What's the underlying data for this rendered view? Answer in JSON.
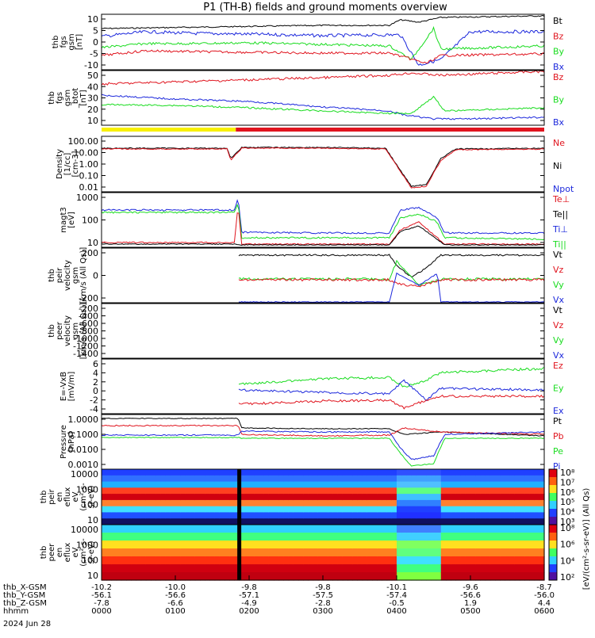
{
  "title": "P1 (TH-B) fields and ground moments overview",
  "colors": {
    "black": "#000000",
    "red": "#e0141e",
    "green": "#18dc1e",
    "blue": "#1c28dc",
    "yellow": "#f8f000",
    "barRed": "#e0141e"
  },
  "panels": [
    {
      "key": "fgs",
      "ylabel": [
        "thb",
        "fgs",
        "gsm",
        "[nT]"
      ],
      "yticks": [
        "10",
        "5",
        "0",
        "-5",
        "-10"
      ],
      "legend": [
        {
          "text": "Bt",
          "color": "black"
        },
        {
          "text": "Bz",
          "color": "red"
        },
        {
          "text": "By",
          "color": "green"
        },
        {
          "text": "Bx",
          "color": "blue"
        }
      ]
    },
    {
      "key": "fgs_log",
      "ylabel": [
        "thb",
        "fgs",
        "gsm",
        "_btot",
        "[nT]"
      ],
      "yticks": [
        "50",
        "40",
        "30",
        "20",
        "10"
      ],
      "legend": [
        {
          "text": "Bz",
          "color": "red"
        },
        {
          "text": "By",
          "color": "green"
        },
        {
          "text": "Bx",
          "color": "blue"
        }
      ]
    },
    {
      "key": "density",
      "ylabel": [
        "Density",
        "[1/cc]",
        "[cm-3]"
      ],
      "yticks": [
        "100.00",
        "10.00",
        "1.00",
        "0.10",
        "0.01"
      ],
      "legend": [
        {
          "text": "Ne",
          "color": "red"
        },
        {
          "text": "Ni",
          "color": "black"
        },
        {
          "text": "Npot",
          "color": "blue"
        }
      ]
    },
    {
      "key": "temp",
      "ylabel": [
        "magt3",
        "[eV]"
      ],
      "yticks": [
        "1000",
        "100",
        "10"
      ],
      "legend": [
        {
          "text": "Te⊥",
          "color": "red"
        },
        {
          "text": "Te||",
          "color": "black"
        },
        {
          "text": "Ti⊥",
          "color": "blue"
        },
        {
          "text": "Ti||",
          "color": "green"
        }
      ]
    },
    {
      "key": "peir_vel",
      "ylabel": [
        "thb",
        "peir",
        "velocity",
        "gsm",
        "[km/s (All Qs)]"
      ],
      "yticks": [
        "200",
        "0",
        "-200"
      ],
      "legend": [
        {
          "text": "Vt",
          "color": "black"
        },
        {
          "text": "Vz",
          "color": "red"
        },
        {
          "text": "Vy",
          "color": "green"
        },
        {
          "text": "Vx",
          "color": "blue"
        }
      ]
    },
    {
      "key": "peer_vel",
      "ylabel": [
        "thb",
        "peer",
        "velocity",
        "gsm",
        "[km/s (All Qs)]"
      ],
      "yticks": [
        "-200",
        "-400",
        "-600",
        "-800",
        "-1000",
        "-1200",
        "-1400"
      ],
      "legend": [
        {
          "text": "Vt",
          "color": "black"
        },
        {
          "text": "Vz",
          "color": "red"
        },
        {
          "text": "Vy",
          "color": "green"
        },
        {
          "text": "Vx",
          "color": "blue"
        }
      ]
    },
    {
      "key": "efield",
      "ylabel": [
        "E=-VxB",
        "[mV/m]"
      ],
      "yticks": [
        "6",
        "4",
        "2",
        "0",
        "-2",
        "-4"
      ],
      "legend": [
        {
          "text": "Ez",
          "color": "red"
        },
        {
          "text": "Ey",
          "color": "green"
        },
        {
          "text": "Ex",
          "color": "blue"
        }
      ]
    },
    {
      "key": "pressure",
      "ylabel": [
        "Pressure",
        "[nPa]"
      ],
      "yticks": [
        "1.0000",
        "0.1000",
        "0.0100",
        "0.0010"
      ],
      "legend": [
        {
          "text": "Pt",
          "color": "black"
        },
        {
          "text": "Pb",
          "color": "red"
        },
        {
          "text": "Pe",
          "color": "green"
        },
        {
          "text": "Pi",
          "color": "blue"
        }
      ]
    },
    {
      "key": "peir_en",
      "ylabel": [
        "thb",
        "peir",
        "en",
        "eflux",
        "eV",
        "(cm²-s-",
        "sr-eV)"
      ],
      "yticks": [
        "10000",
        "1000",
        "100",
        "10"
      ],
      "legend": []
    },
    {
      "key": "peer_en",
      "ylabel": [
        "thb",
        "peer",
        "en",
        "eflux",
        "eV",
        "(cm²-s-",
        "sr-eV)"
      ],
      "yticks": [
        "10000",
        "1000",
        "100",
        "10"
      ],
      "legend": []
    }
  ],
  "colorbar1": {
    "ticks": [
      "10⁸",
      "10⁷",
      "10⁶",
      "10⁵",
      "10⁴",
      "10³"
    ]
  },
  "colorbar2": {
    "ticks": [
      "10⁸",
      "10⁶",
      "10⁴",
      "10²"
    ]
  },
  "colorbar_label": "[eV/(cm²-s-sr-eV)] (All Qs)",
  "xaxis": {
    "rows": [
      {
        "name": "thb_X-GSM",
        "values": [
          "-10.2",
          "-10.0",
          "-9.8",
          "-9.8",
          "-10.1",
          "-9.6",
          "-8.7"
        ]
      },
      {
        "name": "thb_Y-GSM",
        "values": [
          "-56.1",
          "-56.6",
          "-57.1",
          "-57.5",
          "-57.4",
          "-56.6",
          "-56.0"
        ]
      },
      {
        "name": "thb_Z-GSM",
        "values": [
          "-7.8",
          "-6.6",
          "-4.9",
          "-2.8",
          "-0.5",
          "1.9",
          "4.4"
        ]
      },
      {
        "name": "hhmm",
        "values": [
          "0000",
          "0100",
          "0200",
          "0300",
          "0400",
          "0500",
          "0600"
        ]
      }
    ],
    "date": "2024 Jun 28"
  },
  "chart_data": {
    "type": "line",
    "title": "P1 (TH-B) fields and ground moments overview",
    "x_hours": [
      0,
      1,
      2,
      3,
      4,
      5,
      6
    ],
    "x_labels": [
      "0000",
      "0100",
      "0200",
      "0300",
      "0400",
      "0500",
      "0600"
    ],
    "series": [
      {
        "panel": "fgs",
        "name": "Bt",
        "x": [
          0,
          0.5,
          1,
          1.5,
          2,
          2.5,
          3,
          3.5,
          4,
          4.3,
          4.6,
          5,
          5.5,
          6
        ],
        "y": [
          9,
          10,
          11,
          11,
          12,
          12,
          12,
          13,
          13,
          10,
          12,
          13,
          13,
          13
        ]
      },
      {
        "panel": "fgs",
        "name": "Bz",
        "x": [
          0,
          0.5,
          1,
          1.5,
          2,
          2.5,
          3,
          3.5,
          4,
          4.3,
          4.6,
          5,
          5.5,
          6
        ],
        "y": [
          -7,
          -6,
          -5,
          -6,
          -5,
          -5,
          -6,
          -6,
          -6,
          -8,
          -5,
          -4,
          -4,
          -5
        ]
      },
      {
        "panel": "fgs",
        "name": "By",
        "x": [
          0,
          0.5,
          1,
          1.5,
          2,
          2.5,
          3,
          3.5,
          4,
          4.3,
          4.6,
          5,
          5.5,
          6
        ],
        "y": [
          -5,
          -4,
          -3,
          -3,
          -2,
          -3,
          -3,
          -3,
          -3,
          -7,
          10,
          -2,
          -1,
          -1
        ]
      },
      {
        "panel": "fgs",
        "name": "Bx",
        "x": [
          0,
          0.5,
          1,
          1.5,
          2,
          2.5,
          3,
          3.5,
          4,
          4.3,
          4.6,
          5,
          5.5,
          6
        ],
        "y": [
          5,
          5,
          5,
          6,
          6,
          4,
          4,
          3,
          3,
          -8,
          8,
          6,
          6,
          6
        ]
      },
      {
        "panel": "density",
        "name": "Ne",
        "x": [
          0,
          1,
          1.7,
          1.75,
          2,
          3,
          3.8,
          4,
          4.2,
          4.5,
          4.6,
          5,
          6
        ],
        "y": [
          10,
          10,
          10,
          3,
          10,
          10,
          10,
          2,
          0.04,
          0.05,
          4,
          9,
          10
        ]
      },
      {
        "panel": "temp",
        "name": "Ti||",
        "x": [
          0,
          1,
          1.8,
          2,
          3,
          4,
          4.2,
          4.5,
          4.6,
          5,
          6
        ],
        "y": [
          500,
          500,
          500,
          25,
          30,
          30,
          400,
          500,
          40,
          30,
          30
        ]
      }
    ],
    "note_units": "x in hours UT on 2024 Jun 28"
  }
}
